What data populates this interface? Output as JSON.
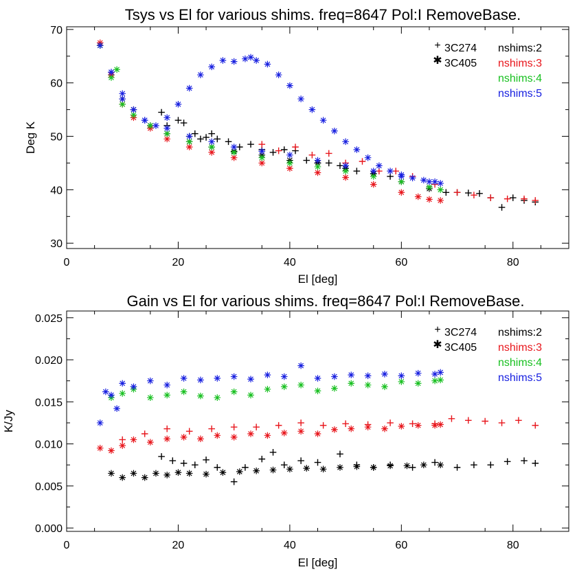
{
  "chart_data": [
    {
      "type": "scatter",
      "title": "Tsys vs El for various shims. freq=8647 Pol:I RemoveBase.",
      "xlabel": "El [deg]",
      "ylabel": "Deg K",
      "xlim": [
        0,
        90
      ],
      "ylim": [
        29,
        70.5
      ],
      "xticks": [
        "0",
        "20",
        "40",
        "60",
        "80"
      ],
      "yticks": [
        "30",
        "40",
        "50",
        "60",
        "70"
      ],
      "legend_position": "top-right",
      "legend_sources": [
        {
          "marker": "+",
          "label": "3C274"
        },
        {
          "marker": "✱",
          "label": "3C405"
        }
      ],
      "legend_series": [
        {
          "label": "nshims:2",
          "color": "#000000"
        },
        {
          "label": "nshims:3",
          "color": "#e8161c"
        },
        {
          "label": "nshims:4",
          "color": "#18c020"
        },
        {
          "label": "nshims:5",
          "color": "#1820e0"
        }
      ],
      "series": [
        {
          "name": "nshims:2 3C274",
          "marker": "+",
          "color": "#000000",
          "x": [
            17,
            18,
            20,
            21,
            22,
            23,
            24,
            25,
            26,
            27,
            29,
            31,
            33,
            35,
            37,
            39,
            41,
            43,
            45,
            47,
            49,
            52,
            55,
            58,
            68,
            70,
            72,
            74,
            76,
            78,
            80,
            82,
            84
          ],
          "y": [
            54.5,
            52,
            53,
            52.5,
            50,
            50.5,
            49.5,
            49.8,
            50.5,
            49.5,
            49,
            48,
            48.5,
            47.5,
            47,
            47.5,
            47.3,
            45.5,
            45,
            45,
            44.5,
            43.5,
            43,
            42.5,
            39.5,
            39.5,
            39.4,
            39.3,
            38.5,
            36.7,
            38.5,
            38,
            37.7
          ]
        },
        {
          "name": "nshims:2 3C405",
          "marker": "*",
          "color": "#000000",
          "x": [
            6,
            8,
            10,
            12,
            15,
            18,
            22,
            26,
            30,
            35,
            40,
            45,
            50,
            55,
            60,
            65
          ],
          "y": [
            67,
            61.5,
            57,
            55,
            52,
            50.5,
            49,
            48,
            47.2,
            46.5,
            45.5,
            45,
            44,
            43,
            41.5,
            40.2
          ]
        },
        {
          "name": "nshims:3 3C274",
          "marker": "+",
          "color": "#e8161c",
          "x": [
            35,
            38,
            41,
            44,
            47,
            50,
            53,
            56,
            59,
            62,
            66,
            70,
            73,
            76,
            79,
            82,
            84
          ],
          "y": [
            48.5,
            47.3,
            48,
            46.5,
            46.8,
            45,
            45.3,
            43.5,
            43.5,
            42.5,
            41,
            39.5,
            39,
            38.5,
            38.3,
            38.3,
            38
          ]
        },
        {
          "name": "nshims:3 3C405",
          "marker": "*",
          "color": "#e8161c",
          "x": [
            6,
            8,
            10,
            12,
            15,
            18,
            22,
            26,
            30,
            35,
            40,
            45,
            50,
            55,
            60,
            63,
            65,
            67
          ],
          "y": [
            67.5,
            61.5,
            56,
            53.5,
            51.5,
            49.5,
            48,
            47,
            46,
            45,
            44,
            43.2,
            42.3,
            41,
            39.5,
            38.7,
            38.2,
            38
          ]
        },
        {
          "name": "nshims:4 3C405",
          "marker": "*",
          "color": "#18c020",
          "x": [
            6,
            8,
            9,
            10,
            12,
            15,
            18,
            22,
            26,
            30,
            35,
            40,
            45,
            50,
            55,
            60,
            65,
            67
          ],
          "y": [
            67,
            61,
            62.5,
            56,
            54,
            52,
            50.5,
            49,
            48,
            47,
            46,
            45,
            44.3,
            43.5,
            42.5,
            41.5,
            40.5,
            40
          ]
        },
        {
          "name": "nshims:5 3C405",
          "marker": "*",
          "color": "#1820e0",
          "x": [
            6,
            8,
            10,
            12,
            14,
            16,
            18,
            20,
            22,
            24,
            26,
            28,
            30,
            32,
            33,
            34,
            36,
            38,
            40,
            42,
            44,
            46,
            48,
            50,
            52,
            54,
            56,
            58,
            60,
            62,
            64,
            66,
            67
          ],
          "y": [
            67,
            62,
            58,
            55,
            53,
            52,
            53.5,
            56,
            59,
            61.5,
            63,
            64.2,
            64,
            64.5,
            64.8,
            64.2,
            63.5,
            61.5,
            59.5,
            57,
            55,
            53,
            51,
            49,
            47.5,
            46,
            44.5,
            43.5,
            42.8,
            42.2,
            41.8,
            41.5,
            41.2
          ]
        },
        {
          "name": "nshims:5 3C405 return",
          "marker": "*",
          "color": "#1820e0",
          "x": [
            8,
            10,
            14,
            18,
            22,
            26,
            30,
            35,
            40,
            45,
            50,
            55,
            60,
            65
          ],
          "y": [
            62,
            57,
            53,
            51.5,
            50,
            49,
            48,
            47.2,
            46.5,
            45.5,
            44.5,
            43.5,
            42.5,
            41.5
          ]
        }
      ]
    },
    {
      "type": "scatter",
      "title": "Gain vs El for various shims. freq=8647 Pol:I RemoveBase.",
      "xlabel": "El [deg]",
      "ylabel": "K/Jy",
      "xlim": [
        0,
        90
      ],
      "ylim": [
        -0.0004,
        0.0258
      ],
      "xticks": [
        "0",
        "20",
        "40",
        "60",
        "80"
      ],
      "yticks": [
        "0.000",
        "0.005",
        "0.010",
        "0.015",
        "0.020",
        "0.025"
      ],
      "legend_position": "top-right",
      "legend_sources": [
        {
          "marker": "+",
          "label": "3C274"
        },
        {
          "marker": "✱",
          "label": "3C405"
        }
      ],
      "legend_series": [
        {
          "label": "nshims:2",
          "color": "#000000"
        },
        {
          "label": "nshims:3",
          "color": "#e8161c"
        },
        {
          "label": "nshims:4",
          "color": "#18c020"
        },
        {
          "label": "nshims:5",
          "color": "#1820e0"
        }
      ],
      "series": [
        {
          "name": "nshims:2 3C274",
          "marker": "+",
          "color": "#000000",
          "x": [
            17,
            19,
            21,
            23,
            25,
            27,
            30,
            32,
            35,
            37,
            39,
            42,
            45,
            49,
            52,
            55,
            58,
            62,
            66,
            70,
            73,
            76,
            79,
            82,
            84
          ],
          "y": [
            0.0085,
            0.008,
            0.0077,
            0.0075,
            0.0081,
            0.0072,
            0.0055,
            0.0072,
            0.0082,
            0.009,
            0.0075,
            0.008,
            0.0078,
            0.0088,
            0.0075,
            0.0072,
            0.0075,
            0.0072,
            0.0078,
            0.0072,
            0.0075,
            0.0075,
            0.0079,
            0.008,
            0.0077
          ]
        },
        {
          "name": "nshims:2 3C405",
          "marker": "*",
          "color": "#000000",
          "x": [
            8,
            10,
            12,
            14,
            16,
            18,
            20,
            22,
            25,
            28,
            31,
            34,
            37,
            40,
            43,
            46,
            49,
            52,
            55,
            58,
            61,
            64,
            67
          ],
          "y": [
            0.0065,
            0.006,
            0.0065,
            0.006,
            0.0065,
            0.0063,
            0.0066,
            0.0065,
            0.0064,
            0.0066,
            0.0067,
            0.0068,
            0.0069,
            0.007,
            0.0071,
            0.007,
            0.0072,
            0.0073,
            0.0072,
            0.0074,
            0.0074,
            0.0075,
            0.0075
          ]
        },
        {
          "name": "nshims:3 3C274",
          "marker": "+",
          "color": "#e8161c",
          "x": [
            10,
            14,
            18,
            22,
            26,
            30,
            34,
            38,
            42,
            46,
            50,
            54,
            58,
            62,
            66,
            69,
            72,
            75,
            78,
            81,
            84
          ],
          "y": [
            0.0105,
            0.0112,
            0.0118,
            0.0115,
            0.0118,
            0.012,
            0.012,
            0.0122,
            0.0125,
            0.0122,
            0.0124,
            0.0123,
            0.0125,
            0.0124,
            0.0124,
            0.013,
            0.0128,
            0.0127,
            0.0125,
            0.0128,
            0.0122
          ]
        },
        {
          "name": "nshims:3 3C405",
          "marker": "*",
          "color": "#e8161c",
          "x": [
            6,
            8,
            10,
            12,
            15,
            18,
            21,
            24,
            27,
            30,
            33,
            36,
            39,
            42,
            45,
            48,
            51,
            54,
            57,
            60,
            63,
            66,
            67
          ],
          "y": [
            0.0095,
            0.0092,
            0.0098,
            0.0105,
            0.0102,
            0.0106,
            0.0108,
            0.0106,
            0.011,
            0.0108,
            0.0112,
            0.011,
            0.0113,
            0.0115,
            0.0112,
            0.0117,
            0.0118,
            0.012,
            0.0118,
            0.0121,
            0.0122,
            0.0122,
            0.0123
          ]
        },
        {
          "name": "nshims:4 3C405",
          "marker": "*",
          "color": "#18c020",
          "x": [
            8,
            10,
            12,
            15,
            18,
            21,
            24,
            27,
            30,
            33,
            36,
            39,
            42,
            45,
            48,
            51,
            54,
            57,
            60,
            63,
            66,
            67
          ],
          "y": [
            0.0155,
            0.016,
            0.0165,
            0.0155,
            0.0158,
            0.0162,
            0.0157,
            0.0155,
            0.0162,
            0.0158,
            0.0165,
            0.0168,
            0.017,
            0.0163,
            0.0166,
            0.0172,
            0.017,
            0.0168,
            0.0174,
            0.0172,
            0.0175,
            0.0176
          ]
        },
        {
          "name": "nshims:5 3C405",
          "marker": "*",
          "color": "#1820e0",
          "x": [
            6,
            7,
            8,
            9,
            10,
            12,
            15,
            18,
            21,
            24,
            27,
            30,
            33,
            36,
            39,
            42,
            45,
            48,
            51,
            54,
            57,
            60,
            63,
            66,
            67
          ],
          "y": [
            0.0125,
            0.0162,
            0.0158,
            0.0142,
            0.0172,
            0.0168,
            0.0175,
            0.017,
            0.0178,
            0.0176,
            0.0178,
            0.018,
            0.0177,
            0.0182,
            0.018,
            0.0193,
            0.0178,
            0.018,
            0.0182,
            0.0181,
            0.0183,
            0.0181,
            0.0184,
            0.0183,
            0.0185
          ]
        }
      ]
    }
  ]
}
